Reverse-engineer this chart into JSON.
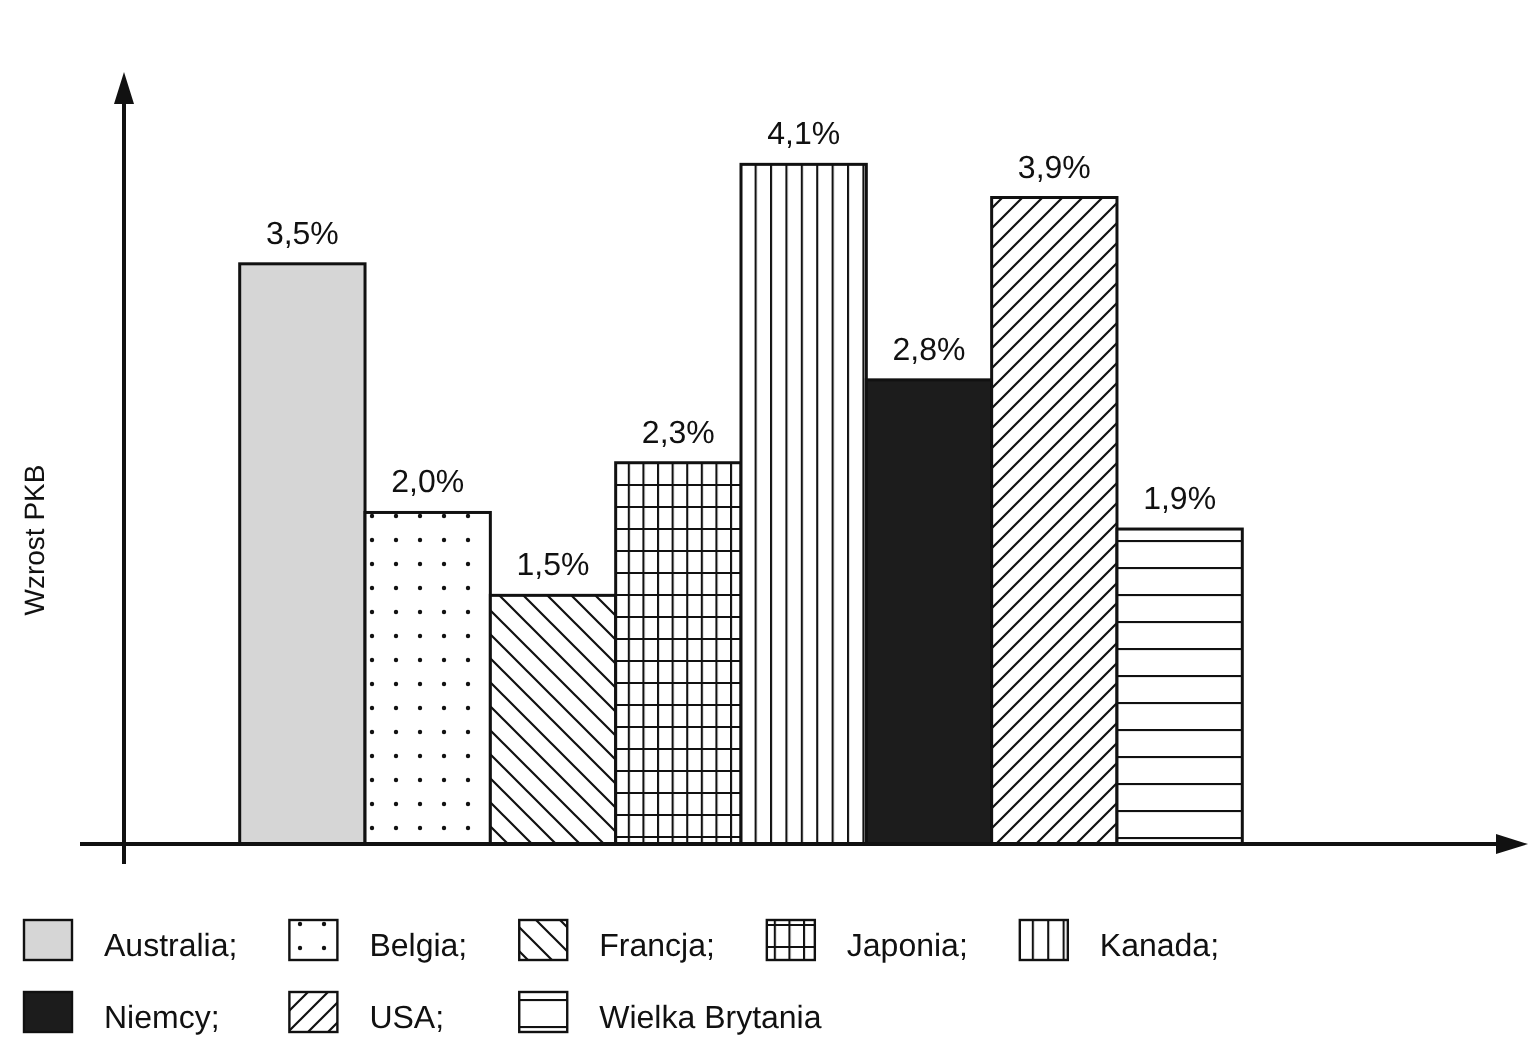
{
  "chart_data": {
    "type": "bar",
    "ylabel": "Wzrost PKB",
    "categories": [
      null
    ],
    "series": [
      {
        "name": "Australia;",
        "color": "#d6d6d6",
        "values": [
          3.5
        ],
        "value_labels": [
          "3,5%"
        ]
      },
      {
        "name": "Belgia;",
        "color": "#111111",
        "values": [
          2.0
        ],
        "value_labels": [
          "2,0%"
        ]
      },
      {
        "name": "Francja;",
        "color": "#111111",
        "values": [
          1.5
        ],
        "value_labels": [
          "1,5%"
        ]
      },
      {
        "name": "Japonia;",
        "color": "#111111",
        "values": [
          2.3
        ],
        "value_labels": [
          "2,3%"
        ]
      },
      {
        "name": "Kanada;",
        "color": "#111111",
        "values": [
          4.1
        ],
        "value_labels": [
          "4,1%"
        ]
      },
      {
        "name": "Niemcy;",
        "color": "#1c1c1c",
        "values": [
          2.8
        ],
        "value_labels": [
          "2,8%"
        ]
      },
      {
        "name": "USA;",
        "color": "#111111",
        "values": [
          3.9
        ],
        "value_labels": [
          "3,9%"
        ]
      },
      {
        "name": "Wielka Brytania",
        "color": "#111111",
        "values": [
          1.9
        ],
        "value_labels": [
          "1,9%"
        ]
      }
    ],
    "legend": "bottom"
  }
}
